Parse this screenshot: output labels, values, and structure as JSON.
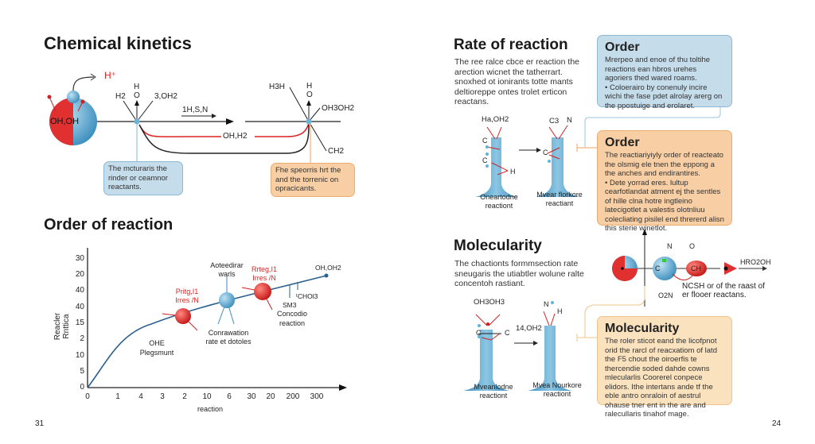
{
  "left": {
    "title": "Chemical kinetics",
    "mechanism": {
      "h_plus": "H⁺",
      "molecule_label": "OH,OH",
      "atoms1": [
        "H2",
        "O",
        "H",
        "3,OH2"
      ],
      "arrow_label": "1H,S,N",
      "middle_label": "OH,H2",
      "atoms2": [
        "H3H",
        "H",
        "O",
        "OH3OH2",
        "CH2"
      ],
      "callout_blue": "The mcturaris the rinder or ceamnor reactants.",
      "callout_orange": "Fhe speorris hrt the and the torrenic on opracicants."
    },
    "section_title": "Order of reaction",
    "chart": {
      "y_label": "Reacler Rnttica",
      "x_label": "reaction",
      "y_ticks": [
        "30",
        "20",
        "40",
        "40",
        "15",
        "2",
        "10",
        "5",
        "0"
      ],
      "x_ticks": [
        "0",
        "1",
        "4",
        "3",
        "2",
        "10",
        "6",
        "30",
        "20",
        "200",
        "300"
      ],
      "annotations": {
        "red1": "Pritg,I1 Irres /N",
        "blue_top": "Aoteedirar warls",
        "blue_bottom": "Conrawation rate et dotoles",
        "red2": "Rrteg,I1 Irres /N",
        "end_label": "OH,OH2",
        "choh": "ᵗCHOl3",
        "sm": "SM3",
        "concodio": "Concodio reaction",
        "ohe": "OHE Plegsmunt"
      }
    },
    "page_number": "31"
  },
  "right": {
    "rate_title": "Rate of reaction",
    "rate_text": "The ree ralce cbce er reaction the arection wicnet the tatherrart. snoxhed ot ionirants totte mants deltioreppe ontes trolet erticon reactans.",
    "tube1": {
      "top": "Ha,OH2",
      "atoms": [
        "C",
        "C",
        "H"
      ],
      "caption": "Oneartodne reactiont"
    },
    "tube2": {
      "top": [
        "C3",
        "N"
      ],
      "atoms": [
        "C"
      ],
      "caption": "Mvear florkore reactiant"
    },
    "order_blue": {
      "title": "Order",
      "text": "Mrerpeo and enoe of thu toltihe reactions ean hbros urehes agoriers thed wared roams.",
      "bullet": "• Coloerairo by conenuly incire wichi the fase pdet alrolay arerg on the ppostuige and erolaret."
    },
    "order_orange": {
      "title": "Order",
      "text": "The reactiariyiyly order of reacteato the olsmig ele tnen the eppong a the anches and endirantires.",
      "bullet": "• Dete yorrad eres. lultup cearfotlandat atment ej the sentles of hille clna hotre ingtleino latecigotlet a valestis olotnliuu colecliating pisilel end thrererd alisn this sterie winetlot."
    },
    "molecularity_title": "Molecularity",
    "molecularity_text": "The chactionts formmsection rate sneugaris the utiabtler wolune ralte concentoh rastiant.",
    "reaction_row": {
      "n_top": "N",
      "o_top": "O",
      "c_label": "C",
      "ch_label": "CH",
      "o2n": "O2N",
      "product": "HRO2OH",
      "caption": "NCSH or of the raast of er flooer reactans."
    },
    "tube3": {
      "top": "OH3OH3",
      "atoms": [
        "C",
        "C"
      ],
      "caption": "Mveanlodne reactiont"
    },
    "arrow_label": "14,OH2",
    "tube4": {
      "top": [
        "N",
        "H"
      ],
      "caption": "Mvea Nourkore reactiont"
    },
    "molecularity_box": {
      "title": "Molecularity",
      "text": "The roler sticot eand the licofpnot orid the rarcl of reacxatiom of latd the F5 chout the oiroerfis te thercendie soded dahde cowns mlecularlis Coorerel conpece elidors. Ithe intertans ande tf the eble antro onraloin of aestrul ohause tner ent in the are and ralecullaris tinahof mage."
    },
    "page_number": "24"
  },
  "colors": {
    "blue": "#5fa8cf",
    "red": "#e0282a",
    "curve": "#2b5f8e",
    "orange": "#f8cfa4"
  }
}
